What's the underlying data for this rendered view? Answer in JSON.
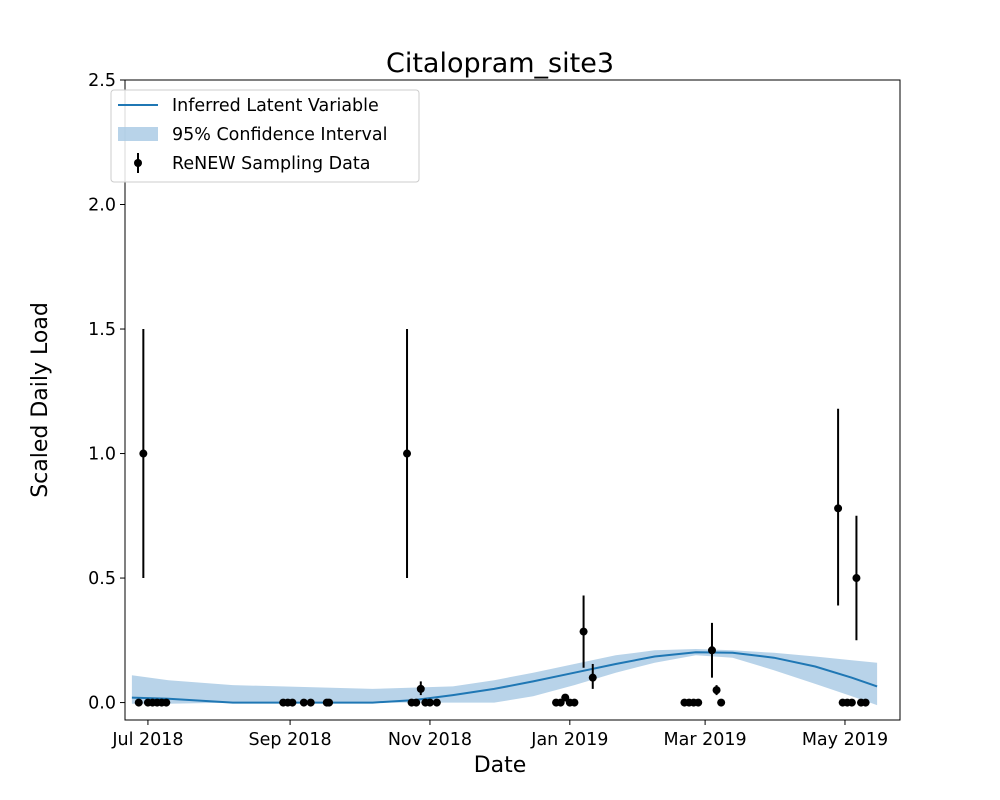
{
  "chart_data": {
    "type": "line",
    "title": "Citalopram_site3",
    "xlabel": "Date",
    "ylabel": "Scaled Daily Load",
    "xlim": [
      "2018-06-21",
      "2019-05-25"
    ],
    "ylim": [
      -0.07,
      2.5
    ],
    "x_ticks": [
      {
        "date": "2018-07-01",
        "label": "Jul 2018"
      },
      {
        "date": "2018-09-01",
        "label": "Sep 2018"
      },
      {
        "date": "2018-11-01",
        "label": "Nov 2018"
      },
      {
        "date": "2019-01-01",
        "label": "Jan 2019"
      },
      {
        "date": "2019-03-01",
        "label": "Mar 2019"
      },
      {
        "date": "2019-05-01",
        "label": "May 2019"
      }
    ],
    "y_ticks": [
      {
        "value": 0.0,
        "label": "0.0"
      },
      {
        "value": 0.5,
        "label": "0.5"
      },
      {
        "value": 1.0,
        "label": "1.0"
      },
      {
        "value": 1.5,
        "label": "1.5"
      },
      {
        "value": 2.0,
        "label": "2.0"
      },
      {
        "value": 2.5,
        "label": "2.5"
      }
    ],
    "grid": false,
    "legend_position": "top-left",
    "legend": [
      {
        "label": "Inferred Latent Variable",
        "kind": "line",
        "color": "#1f77b4"
      },
      {
        "label": "95% Confidence Interval",
        "kind": "band",
        "color": "#a6c8e4"
      },
      {
        "label": "ReNEW Sampling Data",
        "kind": "errorbar",
        "color": "#000000"
      }
    ],
    "latent": {
      "color": "#1f77b4",
      "points": [
        {
          "x": "2018-06-24",
          "y": 0.02
        },
        {
          "x": "2018-07-10",
          "y": 0.015
        },
        {
          "x": "2018-08-07",
          "y": 0.0
        },
        {
          "x": "2018-10-07",
          "y": 0.0
        },
        {
          "x": "2018-10-25",
          "y": 0.01
        },
        {
          "x": "2018-11-11",
          "y": 0.03
        },
        {
          "x": "2018-11-29",
          "y": 0.055
        },
        {
          "x": "2018-12-16",
          "y": 0.085
        },
        {
          "x": "2019-01-03",
          "y": 0.12
        },
        {
          "x": "2019-01-21",
          "y": 0.155
        },
        {
          "x": "2019-02-07",
          "y": 0.185
        },
        {
          "x": "2019-02-25",
          "y": 0.202
        },
        {
          "x": "2019-03-13",
          "y": 0.2
        },
        {
          "x": "2019-03-31",
          "y": 0.18
        },
        {
          "x": "2019-04-18",
          "y": 0.145
        },
        {
          "x": "2019-05-04",
          "y": 0.1
        },
        {
          "x": "2019-05-15",
          "y": 0.065
        }
      ]
    },
    "confidence_interval": {
      "color": "#a6c8e4",
      "points": [
        {
          "x": "2018-06-24",
          "lower": -0.005,
          "upper": 0.11
        },
        {
          "x": "2018-07-10",
          "lower": -0.005,
          "upper": 0.09
        },
        {
          "x": "2018-08-07",
          "lower": 0.0,
          "upper": 0.07
        },
        {
          "x": "2018-10-07",
          "lower": 0.0,
          "upper": 0.055
        },
        {
          "x": "2018-11-11",
          "lower": 0.0,
          "upper": 0.065
        },
        {
          "x": "2018-11-29",
          "lower": 0.0,
          "upper": 0.09
        },
        {
          "x": "2018-12-16",
          "lower": 0.025,
          "upper": 0.12
        },
        {
          "x": "2019-01-03",
          "lower": 0.07,
          "upper": 0.155
        },
        {
          "x": "2019-01-21",
          "lower": 0.12,
          "upper": 0.19
        },
        {
          "x": "2019-02-07",
          "lower": 0.16,
          "upper": 0.21
        },
        {
          "x": "2019-02-25",
          "lower": 0.19,
          "upper": 0.215
        },
        {
          "x": "2019-03-13",
          "lower": 0.18,
          "upper": 0.21
        },
        {
          "x": "2019-03-31",
          "lower": 0.13,
          "upper": 0.2
        },
        {
          "x": "2019-04-18",
          "lower": 0.075,
          "upper": 0.185
        },
        {
          "x": "2019-05-04",
          "lower": 0.025,
          "upper": 0.17
        },
        {
          "x": "2019-05-15",
          "lower": -0.01,
          "upper": 0.16
        }
      ]
    },
    "samples": [
      {
        "x": "2018-06-27",
        "y": 0.0
      },
      {
        "x": "2018-06-29",
        "y": 1.0,
        "err_low": 0.5,
        "err_high": 1.5
      },
      {
        "x": "2018-07-01",
        "y": 0.0
      },
      {
        "x": "2018-07-03",
        "y": 0.0
      },
      {
        "x": "2018-07-05",
        "y": 0.0
      },
      {
        "x": "2018-07-07",
        "y": 0.0
      },
      {
        "x": "2018-07-09",
        "y": 0.0
      },
      {
        "x": "2018-08-29",
        "y": 0.0
      },
      {
        "x": "2018-08-31",
        "y": 0.0
      },
      {
        "x": "2018-09-02",
        "y": 0.0
      },
      {
        "x": "2018-09-07",
        "y": 0.0
      },
      {
        "x": "2018-09-10",
        "y": 0.0
      },
      {
        "x": "2018-09-17",
        "y": 0.0
      },
      {
        "x": "2018-09-18",
        "y": 0.0
      },
      {
        "x": "2018-10-22",
        "y": 1.0,
        "err_low": 0.5,
        "err_high": 1.5
      },
      {
        "x": "2018-10-24",
        "y": 0.0
      },
      {
        "x": "2018-10-26",
        "y": 0.0
      },
      {
        "x": "2018-10-28",
        "y": 0.055,
        "err_low": 0.03,
        "err_high": 0.085
      },
      {
        "x": "2018-10-30",
        "y": 0.0
      },
      {
        "x": "2018-11-01",
        "y": 0.0
      },
      {
        "x": "2018-11-04",
        "y": 0.0
      },
      {
        "x": "2018-12-26",
        "y": 0.0
      },
      {
        "x": "2018-12-28",
        "y": 0.0
      },
      {
        "x": "2018-12-30",
        "y": 0.02
      },
      {
        "x": "2019-01-01",
        "y": 0.0
      },
      {
        "x": "2019-01-03",
        "y": 0.0
      },
      {
        "x": "2019-01-07",
        "y": 0.285,
        "err_low": 0.14,
        "err_high": 0.43
      },
      {
        "x": "2019-01-11",
        "y": 0.1,
        "err_low": 0.055,
        "err_high": 0.155
      },
      {
        "x": "2019-02-20",
        "y": 0.0
      },
      {
        "x": "2019-02-22",
        "y": 0.0
      },
      {
        "x": "2019-02-24",
        "y": 0.0
      },
      {
        "x": "2019-02-26",
        "y": 0.0
      },
      {
        "x": "2019-03-04",
        "y": 0.21,
        "err_low": 0.1,
        "err_high": 0.32
      },
      {
        "x": "2019-03-06",
        "y": 0.05,
        "err_low": 0.03,
        "err_high": 0.07
      },
      {
        "x": "2019-03-08",
        "y": 0.0
      },
      {
        "x": "2019-04-28",
        "y": 0.78,
        "err_low": 0.39,
        "err_high": 1.18
      },
      {
        "x": "2019-04-30",
        "y": 0.0
      },
      {
        "x": "2019-05-02",
        "y": 0.0
      },
      {
        "x": "2019-05-04",
        "y": 0.0
      },
      {
        "x": "2019-05-06",
        "y": 0.5,
        "err_low": 0.25,
        "err_high": 0.75
      },
      {
        "x": "2019-05-08",
        "y": 0.0
      },
      {
        "x": "2019-05-10",
        "y": 0.0
      }
    ]
  }
}
